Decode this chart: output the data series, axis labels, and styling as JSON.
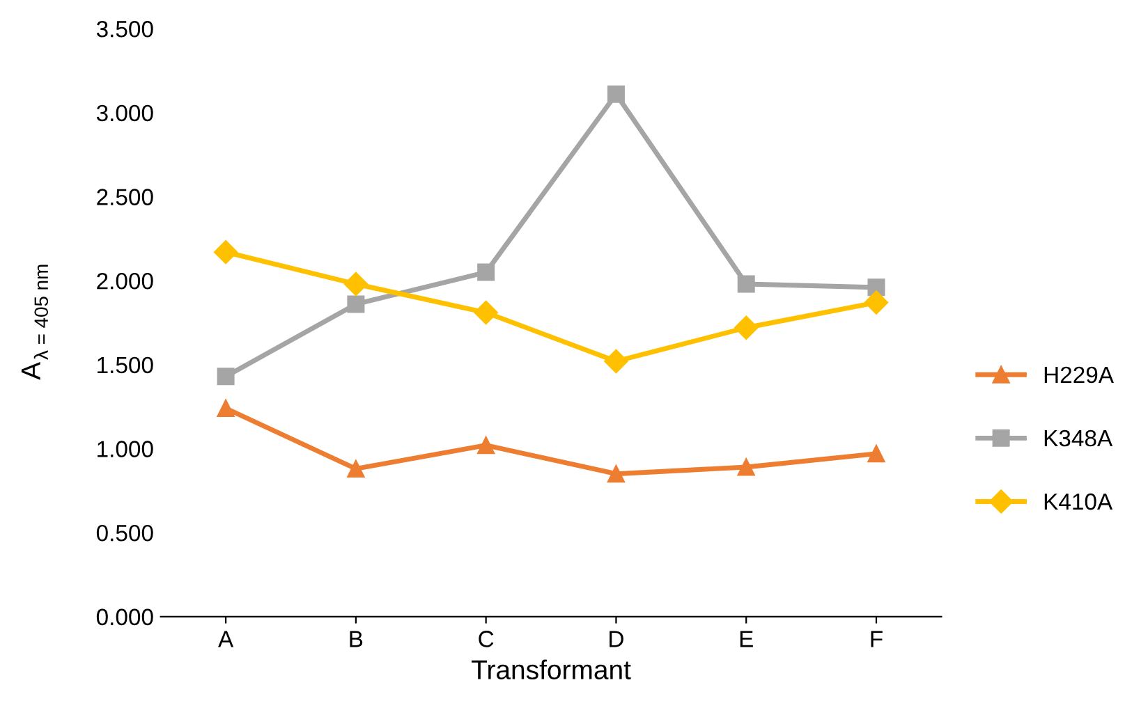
{
  "chart_data": {
    "type": "line",
    "xlabel": "Transformant",
    "ylabel": "A$_{λ = 405 nm}$",
    "categories": [
      "A",
      "B",
      "C",
      "D",
      "E",
      "F"
    ],
    "series": [
      {
        "name": "H229A",
        "color": "#ed7d31",
        "marker": "triangle",
        "values": [
          1.24,
          0.88,
          1.02,
          0.85,
          0.89,
          0.97
        ]
      },
      {
        "name": "K348A",
        "color": "#a5a5a5",
        "marker": "square",
        "values": [
          1.43,
          1.86,
          2.05,
          3.11,
          1.98,
          1.96
        ]
      },
      {
        "name": "K410A",
        "color": "#ffc000",
        "marker": "diamond",
        "values": [
          2.17,
          1.98,
          1.81,
          1.52,
          1.72,
          1.87
        ]
      }
    ],
    "ylim": [
      0,
      3.5
    ],
    "yticks": [
      {
        "value": 0,
        "label": "0.000"
      },
      {
        "value": 0.5,
        "label": "0.500"
      },
      {
        "value": 1,
        "label": "1.000"
      },
      {
        "value": 1.5,
        "label": "1.500"
      },
      {
        "value": 2,
        "label": "2.000"
      },
      {
        "value": 2.5,
        "label": "2.500"
      },
      {
        "value": 3,
        "label": "3.000"
      },
      {
        "value": 3.5,
        "label": "3.500"
      }
    ],
    "grid": false,
    "legend": "right",
    "line_style": "solid"
  }
}
